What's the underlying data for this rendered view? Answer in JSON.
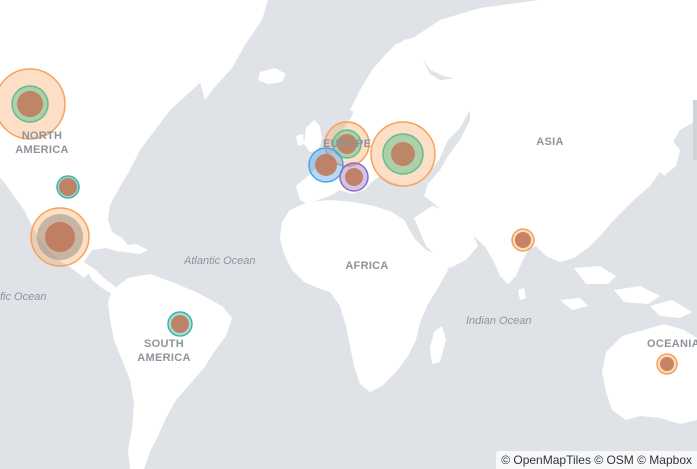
{
  "map": {
    "labels": {
      "north_america": [
        "NORTH",
        "AMERICA"
      ],
      "south_america": [
        "SOUTH",
        "AMERICA"
      ],
      "europe": "EUROPE",
      "africa": "AFRICA",
      "asia": "ASIA",
      "oceania": "OCEANIA",
      "atlantic_ocean": "Atlantic Ocean",
      "pacific_ocean": "fic Ocean",
      "indian_ocean": "Indian Ocean"
    },
    "attribution": "© OpenMapTiles © OSM © Mapbox",
    "colors": {
      "land": "#ffffff",
      "water": "#dfe3e7",
      "orange": "#f5a25d",
      "brown": "#c0795b",
      "green": "#5fbf8b",
      "teal": "#3fb3a8",
      "blue": "#4ea1e8",
      "purple": "#8e6bbf"
    },
    "markers": [
      {
        "name": "north-america-bubble",
        "rings": [
          "orange-large",
          "green",
          "brown"
        ]
      },
      {
        "name": "usa-east-bubble",
        "rings": [
          "teal",
          "brown"
        ]
      },
      {
        "name": "mexico-bubble",
        "rings": [
          "orange",
          "brown-gray",
          "brown"
        ]
      },
      {
        "name": "brazil-bubble",
        "rings": [
          "teal",
          "brown"
        ]
      },
      {
        "name": "europe-north-bubble",
        "rings": [
          "orange",
          "green",
          "brown"
        ]
      },
      {
        "name": "spain-bubble",
        "rings": [
          "blue",
          "brown"
        ]
      },
      {
        "name": "italy-bubble",
        "rings": [
          "purple",
          "brown"
        ]
      },
      {
        "name": "russia-bubble",
        "rings": [
          "orange",
          "green",
          "brown"
        ]
      },
      {
        "name": "india-bubble",
        "rings": [
          "orange",
          "brown"
        ]
      },
      {
        "name": "australia-bubble",
        "rings": [
          "orange",
          "brown"
        ]
      }
    ]
  }
}
